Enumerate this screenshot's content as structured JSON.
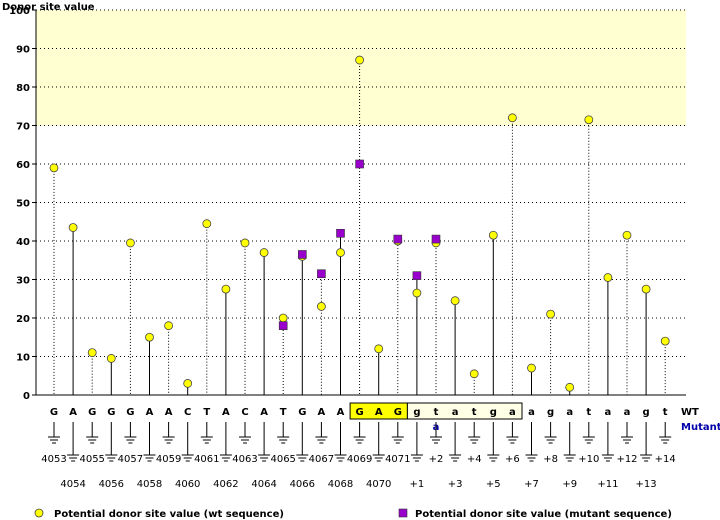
{
  "chart_data": {
    "type": "scatter",
    "ylabel": "Donor site value",
    "ylim": [
      0,
      100
    ],
    "yticks": [
      0,
      10,
      20,
      30,
      40,
      50,
      60,
      70,
      80,
      90,
      100
    ],
    "highlight_band": [
      70,
      100
    ],
    "grid": true,
    "positions": [
      "4053",
      "4054",
      "4055",
      "4056",
      "4057",
      "4058",
      "4059",
      "4060",
      "4061",
      "4062",
      "4063",
      "4064",
      "4065",
      "4066",
      "4067",
      "4068",
      "4069",
      "4070",
      "4071",
      "+1",
      "+2",
      "+3",
      "+4",
      "+5",
      "+6",
      "+7",
      "+8",
      "+9",
      "+10",
      "+11",
      "+12",
      "+13",
      "+14"
    ],
    "wt_sequence": [
      "G",
      "A",
      "G",
      "G",
      "G",
      "A",
      "A",
      "C",
      "T",
      "A",
      "C",
      "A",
      "T",
      "G",
      "A",
      "A",
      "G",
      "A",
      "G",
      "g",
      "t",
      "a",
      "t",
      "g",
      "a",
      "a",
      "g",
      "a",
      "t",
      "a",
      "a",
      "g",
      "t"
    ],
    "mutant_sequence": [
      "",
      "",
      "",
      "",
      "",
      "",
      "",
      "",
      "",
      "",
      "",
      "",
      "",
      "",
      "",
      "",
      "",
      "",
      "",
      "",
      "a",
      "",
      "",
      "",
      "",
      "",
      "",
      "",
      "",
      "",
      "",
      "",
      ""
    ],
    "wt_row_label": "WT",
    "mutant_row_label": "Mutant",
    "exon_box_range": [
      16,
      18
    ],
    "intron_box_range": [
      19,
      24
    ],
    "series": [
      {
        "name": "Potential donor site value (wt sequence)",
        "color": "#ffff00",
        "marker": "circle",
        "values": [
          59,
          43.5,
          11,
          9.5,
          39.5,
          15,
          18,
          3,
          44.5,
          27.5,
          39.5,
          37,
          20,
          36,
          23,
          37,
          87,
          12,
          40,
          26.5,
          39.5,
          24.5,
          5.5,
          41.5,
          72,
          7,
          21,
          2,
          71.5,
          30.5,
          41.5,
          27.5,
          14
        ]
      },
      {
        "name": "Potential donor site value (mutant sequence)",
        "color": "#9900cc",
        "marker": "square",
        "values": [
          null,
          null,
          null,
          null,
          null,
          null,
          null,
          null,
          null,
          null,
          null,
          null,
          18,
          36.5,
          31.5,
          42,
          60,
          null,
          40.5,
          31,
          40.5,
          null,
          null,
          null,
          null,
          null,
          null,
          null,
          null,
          null,
          null,
          null,
          null
        ]
      }
    ]
  }
}
